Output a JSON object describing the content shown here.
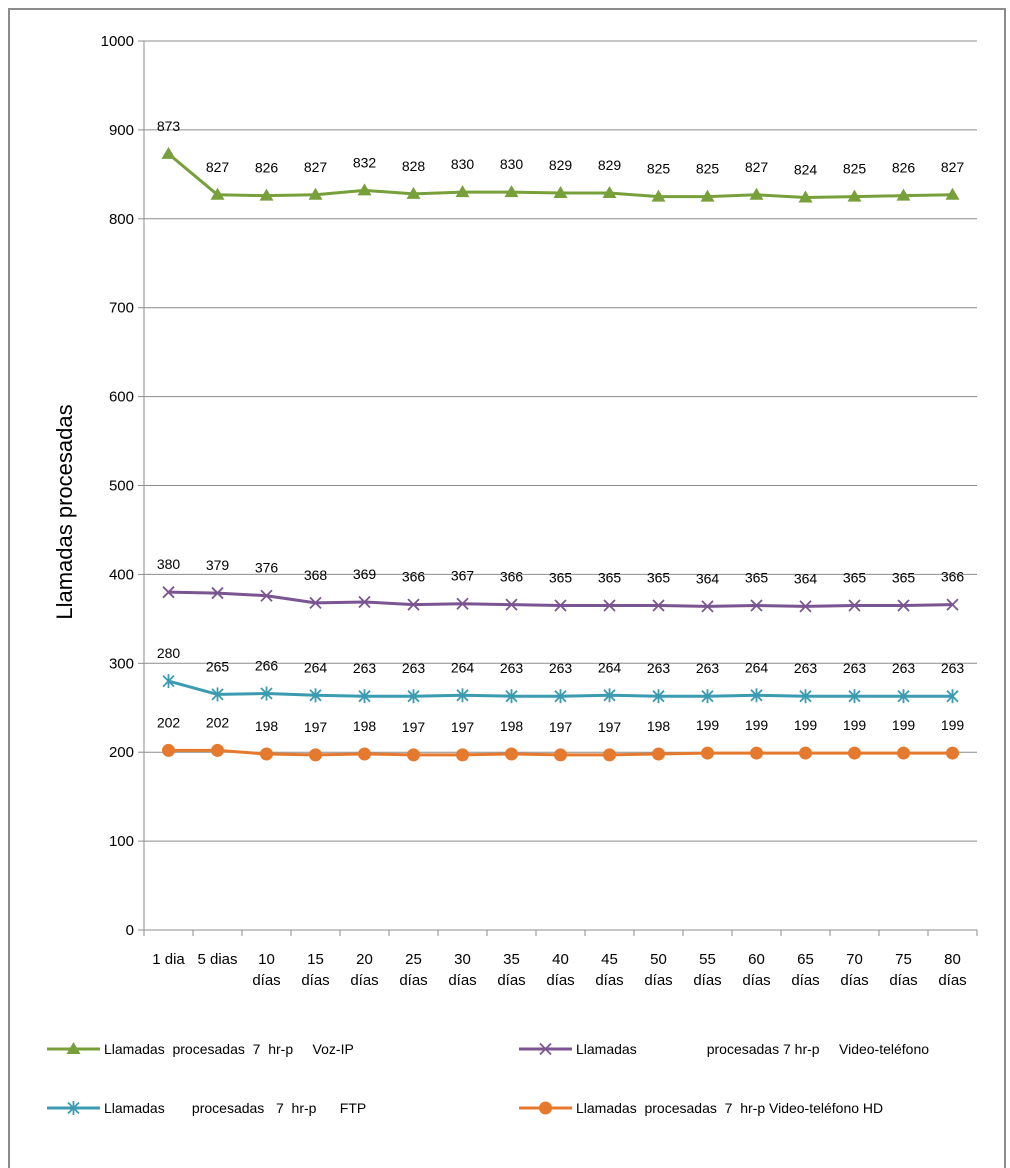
{
  "chart_data": {
    "type": "line",
    "ylabel": "Llamadas procesadas",
    "xlabel": "",
    "ylim": [
      0,
      1000
    ],
    "yticks": [
      0,
      100,
      200,
      300,
      400,
      500,
      600,
      700,
      800,
      900,
      1000
    ],
    "grid": true,
    "legend_position": "bottom",
    "categories": [
      [
        "1 dia"
      ],
      [
        "5 dias"
      ],
      [
        "10",
        "días"
      ],
      [
        "15",
        "días"
      ],
      [
        "20",
        "días"
      ],
      [
        "25",
        "días"
      ],
      [
        "30",
        "días"
      ],
      [
        "35",
        "días"
      ],
      [
        "40",
        "días"
      ],
      [
        "45",
        "días"
      ],
      [
        "50",
        "días"
      ],
      [
        "55",
        "días"
      ],
      [
        "60",
        "días"
      ],
      [
        "65",
        "días"
      ],
      [
        "70",
        "días"
      ],
      [
        "75",
        "días"
      ],
      [
        "80",
        "días"
      ]
    ],
    "series": [
      {
        "name": "Llamadas  procesadas  7  hr-p     Voz-IP",
        "color": "#77a03a",
        "marker": "triangle",
        "values": [
          873,
          827,
          826,
          827,
          832,
          828,
          830,
          830,
          829,
          829,
          825,
          825,
          827,
          824,
          825,
          826,
          827
        ]
      },
      {
        "name": "Llamadas                  procesadas 7 hr-p     Video-teléfono",
        "color": "#7a5591",
        "marker": "x",
        "values": [
          380,
          379,
          376,
          368,
          369,
          366,
          367,
          366,
          365,
          365,
          365,
          364,
          365,
          364,
          365,
          365,
          366
        ]
      },
      {
        "name": "Llamadas       procesadas   7  hr-p      FTP",
        "color": "#3b9bb0",
        "marker": "asterisk",
        "values": [
          280,
          265,
          266,
          264,
          263,
          263,
          264,
          263,
          263,
          264,
          263,
          263,
          264,
          263,
          263,
          263,
          263
        ]
      },
      {
        "name": "Llamadas  procesadas  7  hr-p Video-teléfono HD",
        "color": "#e57a2e",
        "marker": "circle",
        "values": [
          202,
          202,
          198,
          197,
          198,
          197,
          197,
          198,
          197,
          197,
          198,
          199,
          199,
          199,
          199,
          199,
          199
        ]
      }
    ]
  }
}
